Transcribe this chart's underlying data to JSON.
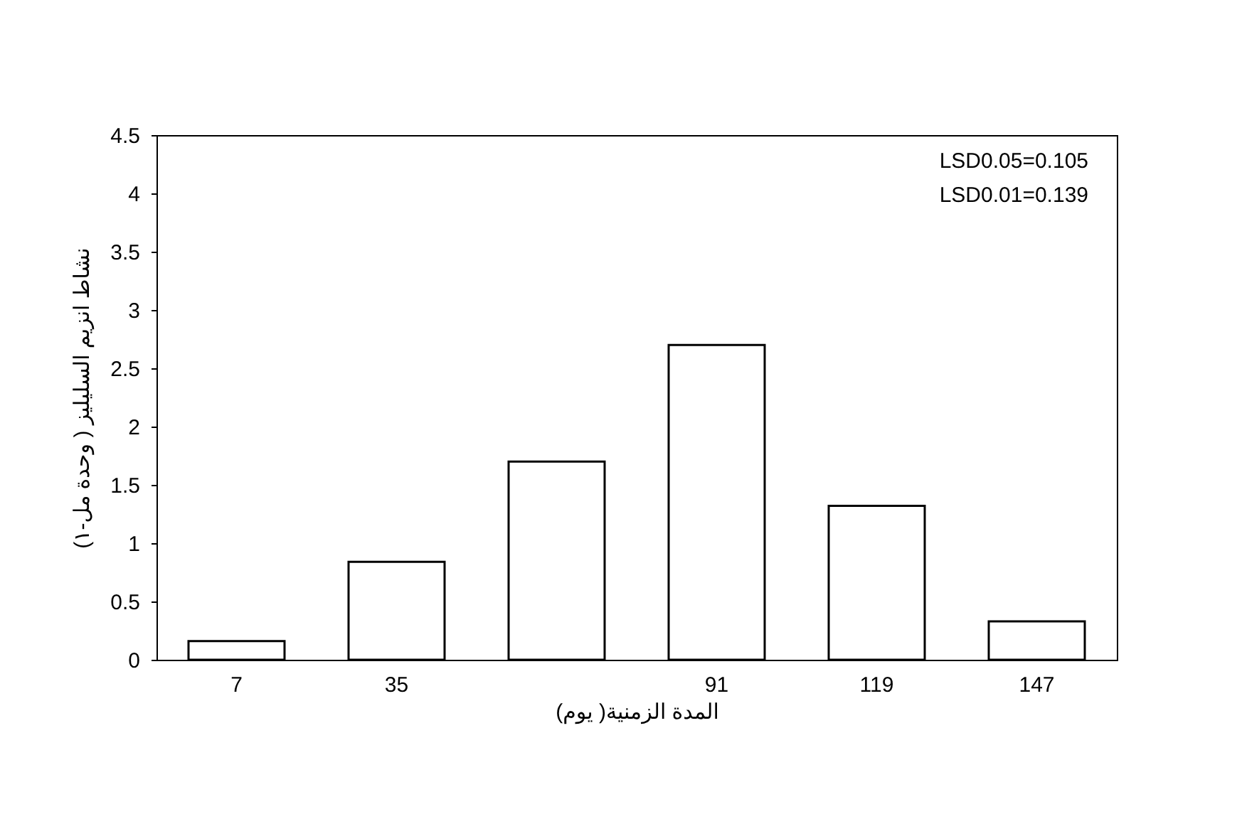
{
  "chart_data": {
    "type": "bar",
    "xlabel": "المدة الزمنية( يوم)",
    "ylabel": "نشاط انزيم السليليز ( وحدة مل-١)",
    "categories": [
      "7",
      "35",
      null,
      "91",
      "119",
      "147"
    ],
    "values": [
      0.16,
      0.84,
      1.7,
      2.7,
      1.32,
      0.33
    ],
    "color": "#ffffff",
    "ylim": [
      0,
      4.5
    ],
    "yticks": [
      0,
      0.5,
      1,
      1.5,
      2,
      2.5,
      3,
      3.5,
      4,
      4.5
    ],
    "grid": false,
    "annotations": [
      "LSD0.05=0.105",
      "LSD0.01=0.139"
    ]
  }
}
